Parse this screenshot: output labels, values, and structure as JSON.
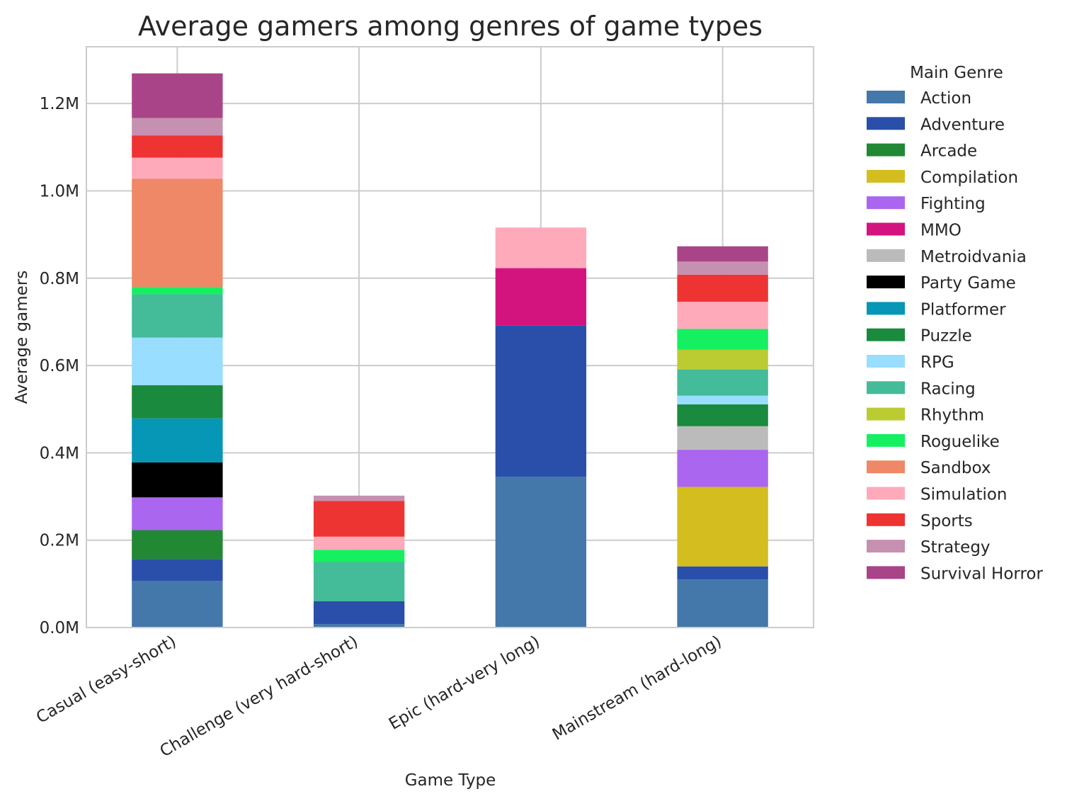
{
  "chart_data": {
    "type": "bar",
    "stacked": true,
    "title": "Average gamers among genres of game types",
    "xlabel": "Game Type",
    "ylabel": "Average gamers",
    "ylim": [
      0,
      1330000
    ],
    "yticks": [
      0,
      200000,
      400000,
      600000,
      800000,
      1000000,
      1200000
    ],
    "ytick_labels": [
      "0.0M",
      "0.2M",
      "0.4M",
      "0.6M",
      "0.8M",
      "1.0M",
      "1.2M"
    ],
    "grid": true,
    "legend_title": "Main Genre",
    "legend_position": "outside-right",
    "categories": [
      "Casual (easy-short)",
      "Challenge (very hard-short)",
      "Epic (hard-very long)",
      "Mainstream (hard-long)"
    ],
    "series": [
      {
        "name": "Action",
        "color": "#4477aa",
        "values": [
          107000,
          8000,
          345000,
          110000
        ]
      },
      {
        "name": "Adventure",
        "color": "#2a4faa",
        "values": [
          50000,
          52000,
          347000,
          30000
        ]
      },
      {
        "name": "Arcade",
        "color": "#228833",
        "values": [
          66000,
          0,
          0,
          0
        ]
      },
      {
        "name": "Compilation",
        "color": "#d4bd1e",
        "values": [
          0,
          0,
          0,
          182000
        ]
      },
      {
        "name": "Fighting",
        "color": "#aa66ee",
        "values": [
          75000,
          0,
          0,
          85000
        ]
      },
      {
        "name": "MMO",
        "color": "#d4147e",
        "values": [
          0,
          0,
          131000,
          0
        ]
      },
      {
        "name": "Metroidvania",
        "color": "#bbbbbb",
        "values": [
          0,
          0,
          0,
          54000
        ]
      },
      {
        "name": "Party Game",
        "color": "#000000",
        "values": [
          80000,
          0,
          0,
          0
        ]
      },
      {
        "name": "Platformer",
        "color": "#0597b5",
        "values": [
          101000,
          0,
          0,
          0
        ]
      },
      {
        "name": "Puzzle",
        "color": "#1a8a3e",
        "values": [
          76000,
          0,
          0,
          50000
        ]
      },
      {
        "name": "RPG",
        "color": "#99ddff",
        "values": [
          109000,
          0,
          0,
          20000
        ]
      },
      {
        "name": "Racing",
        "color": "#44bb99",
        "values": [
          99000,
          90000,
          0,
          60000
        ]
      },
      {
        "name": "Rhythm",
        "color": "#bbcc33",
        "values": [
          0,
          0,
          0,
          45000
        ]
      },
      {
        "name": "Roguelike",
        "color": "#15f060",
        "values": [
          17000,
          28000,
          0,
          48000
        ]
      },
      {
        "name": "Sandbox",
        "color": "#ee8866",
        "values": [
          248000,
          0,
          0,
          0
        ]
      },
      {
        "name": "Simulation",
        "color": "#ffaabb",
        "values": [
          48000,
          30000,
          93000,
          62000
        ]
      },
      {
        "name": "Sports",
        "color": "#ee3333",
        "values": [
          51000,
          82000,
          0,
          62000
        ]
      },
      {
        "name": "Strategy",
        "color": "#c690b0",
        "values": [
          40000,
          12000,
          0,
          30000
        ]
      },
      {
        "name": "Survival Horror",
        "color": "#aa4488",
        "values": [
          102000,
          0,
          0,
          35000
        ]
      }
    ]
  }
}
